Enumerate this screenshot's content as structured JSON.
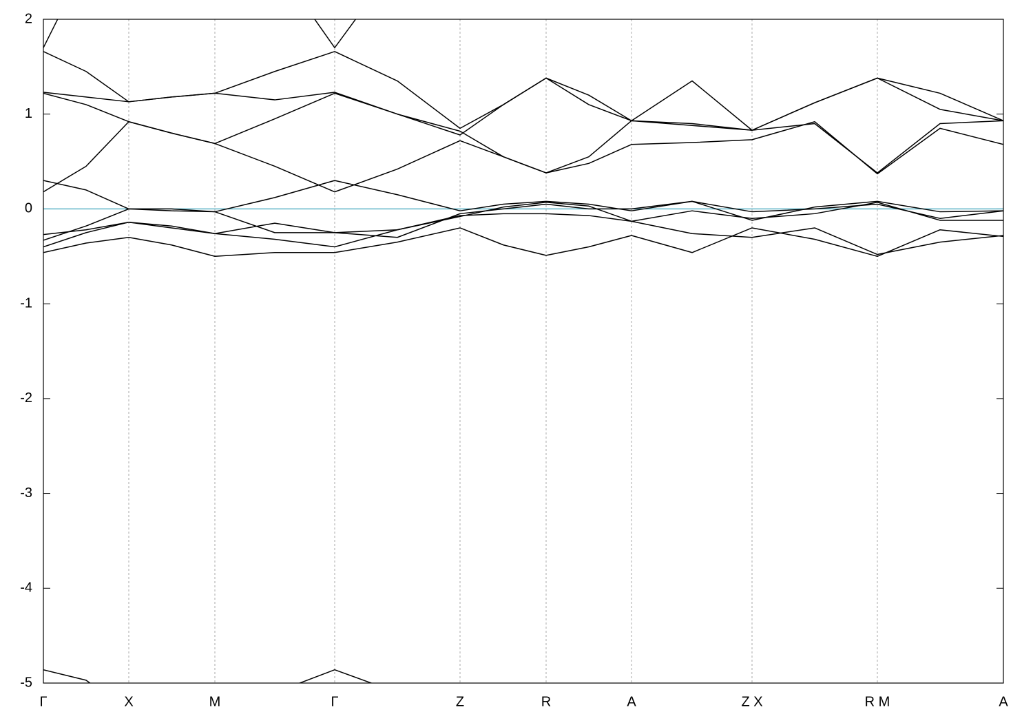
{
  "chart_data": {
    "type": "line",
    "x": [
      0,
      0.62,
      1.24,
      1.86,
      2.49,
      3.36,
      4.23,
      5.14,
      6.05,
      6.68,
      7.3,
      7.92,
      8.54,
      9.42,
      10.29,
      11.2,
      12.11,
      13.02,
      13.94
    ],
    "color": "#000000",
    "fermi_level": 0,
    "fermi_color": "#5fb4c8",
    "series": [
      {
        "values": [
          -0.46,
          -0.36,
          -0.3,
          -0.38,
          -0.5,
          -0.46,
          -0.46,
          -0.35,
          -0.2,
          -0.38,
          -0.49,
          -0.4,
          -0.28,
          -0.46,
          -0.2,
          -0.32,
          -0.5,
          -0.22,
          -0.29
        ]
      },
      {
        "values": [
          -0.4,
          -0.25,
          -0.14,
          -0.2,
          -0.26,
          -0.32,
          -0.4,
          -0.22,
          -0.07,
          -0.05,
          -0.05,
          -0.07,
          -0.13,
          -0.26,
          -0.3,
          -0.2,
          -0.48,
          -0.35,
          -0.28
        ]
      },
      {
        "values": [
          -0.27,
          -0.22,
          -0.14,
          -0.18,
          -0.26,
          -0.15,
          -0.25,
          -0.22,
          -0.08,
          0.02,
          0.07,
          0.03,
          -0.13,
          -0.02,
          -0.1,
          -0.05,
          0.07,
          -0.12,
          -0.12
        ]
      },
      {
        "values": [
          -0.33,
          -0.18,
          0.0,
          -0.02,
          -0.03,
          -0.25,
          -0.25,
          -0.3,
          -0.05,
          0.0,
          0.05,
          0.0,
          0.0,
          0.08,
          -0.03,
          0.0,
          0.05,
          -0.1,
          -0.02
        ]
      },
      {
        "values": [
          0.3,
          0.2,
          0.0,
          0.0,
          -0.03,
          0.12,
          0.3,
          0.15,
          -0.02,
          0.05,
          0.08,
          0.05,
          -0.02,
          0.08,
          -0.12,
          0.02,
          0.08,
          -0.03,
          -0.02
        ]
      },
      {
        "values": [
          0.18,
          0.45,
          0.92,
          0.8,
          0.69,
          0.45,
          0.18,
          0.42,
          0.72,
          0.55,
          0.38,
          0.48,
          0.68,
          0.7,
          0.73,
          0.92,
          0.37,
          0.85,
          0.68
        ]
      },
      {
        "values": [
          1.22,
          1.1,
          0.92,
          0.8,
          0.69,
          0.95,
          1.22,
          1.0,
          0.78,
          1.1,
          1.38,
          1.1,
          0.93,
          0.88,
          0.83,
          1.12,
          1.38,
          1.05,
          0.93
        ]
      },
      {
        "values": [
          1.23,
          1.18,
          1.13,
          1.18,
          1.22,
          1.15,
          1.23,
          1.0,
          0.82,
          0.55,
          0.38,
          0.55,
          0.93,
          0.9,
          0.83,
          0.9,
          0.38,
          0.9,
          0.93
        ]
      },
      {
        "values": [
          1.66,
          1.45,
          1.13,
          1.18,
          1.22,
          1.45,
          1.66,
          1.35,
          0.85,
          1.1,
          1.38,
          1.2,
          0.93,
          1.35,
          0.83,
          1.12,
          1.38,
          1.22,
          0.93
        ]
      },
      {
        "values": [
          1.7,
          2.6,
          null,
          null,
          null,
          2.6,
          1.7,
          2.6,
          null,
          null,
          null,
          null,
          null,
          null,
          null,
          null,
          null,
          null,
          null
        ]
      },
      {
        "values": [
          -4.86,
          -4.97,
          -5.3,
          null,
          null,
          -5.1,
          -4.86,
          -5.1,
          null,
          null,
          null,
          null,
          null,
          null,
          null,
          null,
          null,
          null,
          null
        ]
      }
    ],
    "xlim": [
      0,
      13.94
    ],
    "xticks": [
      {
        "value": 0,
        "label": "Γ"
      },
      {
        "value": 1.24,
        "label": "X"
      },
      {
        "value": 2.49,
        "label": "M"
      },
      {
        "value": 4.23,
        "label": "Γ"
      },
      {
        "value": 6.05,
        "label": "Z"
      },
      {
        "value": 7.3,
        "label": "R"
      },
      {
        "value": 8.54,
        "label": "A"
      },
      {
        "value": 10.29,
        "label": "Z X"
      },
      {
        "value": 12.11,
        "label": "R M"
      },
      {
        "value": 13.94,
        "label": "A"
      }
    ],
    "ylim": [
      -5,
      2
    ],
    "yticks": [
      -5,
      -4,
      -3,
      -2,
      -1,
      0,
      1,
      2
    ],
    "grid": true
  }
}
